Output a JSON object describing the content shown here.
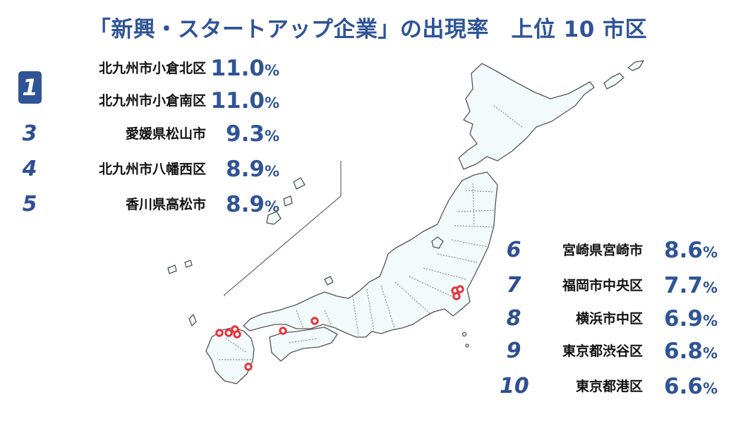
{
  "title": "「新興・スタートアップ企業」の出現率　上位 10 市区",
  "unit": "%",
  "rankings": [
    {
      "rank": "1",
      "name": "北九州市小倉北区",
      "value": "11.0"
    },
    {
      "rank": "",
      "name": "北九州市小倉南区",
      "value": "11.0"
    },
    {
      "rank": "3",
      "name": "愛媛県松山市",
      "value": "9.3"
    },
    {
      "rank": "4",
      "name": "北九州市八幡西区",
      "value": "8.9"
    },
    {
      "rank": "5",
      "name": "香川県高松市",
      "value": "8.9"
    },
    {
      "rank": "6",
      "name": "宮崎県宮崎市",
      "value": "8.6"
    },
    {
      "rank": "7",
      "name": "福岡市中央区",
      "value": "7.7"
    },
    {
      "rank": "8",
      "name": "横浜市中区",
      "value": "6.9"
    },
    {
      "rank": "9",
      "name": "東京都渋谷区",
      "value": "6.8"
    },
    {
      "rank": "10",
      "name": "東京都港区",
      "value": "6.6"
    }
  ],
  "map": {
    "land_color": "#f2fafc",
    "outline_color": "#555555",
    "marker_color": "#e8333a",
    "markers": [
      "kitakyushu-kokurakita",
      "kitakyushu-kokuraminami",
      "kitakyushu-yahatanishi",
      "fukuoka-chuo",
      "matsuyama",
      "takamatsu",
      "miyazaki",
      "shibuya",
      "minato",
      "yokohama-naka"
    ]
  }
}
